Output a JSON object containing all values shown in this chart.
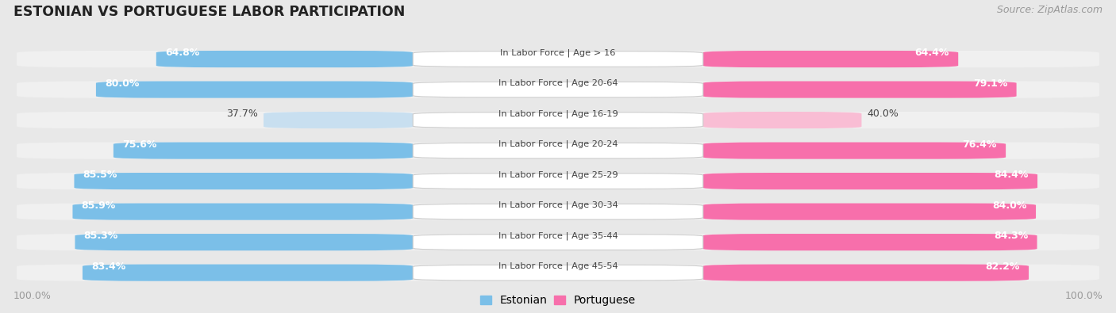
{
  "title": "ESTONIAN VS PORTUGUESE LABOR PARTICIPATION",
  "source": "Source: ZipAtlas.com",
  "categories": [
    "In Labor Force | Age > 16",
    "In Labor Force | Age 20-64",
    "In Labor Force | Age 16-19",
    "In Labor Force | Age 20-24",
    "In Labor Force | Age 25-29",
    "In Labor Force | Age 30-34",
    "In Labor Force | Age 35-44",
    "In Labor Force | Age 45-54"
  ],
  "estonian_values": [
    64.8,
    80.0,
    37.7,
    75.6,
    85.5,
    85.9,
    85.3,
    83.4
  ],
  "portuguese_values": [
    64.4,
    79.1,
    40.0,
    76.4,
    84.4,
    84.0,
    84.3,
    82.2
  ],
  "estonian_color": "#7BBFE8",
  "estonian_light_color": "#C8DFF0",
  "portuguese_color": "#F76FAB",
  "portuguese_light_color": "#F9BDD4",
  "bg_color": "#e8e8e8",
  "row_bg_color": "#f0f0f0",
  "title_color": "#222222",
  "source_color": "#999999",
  "label_color": "#444444",
  "x_label_color": "#999999",
  "max_value": 100.0,
  "x_tick_label": "100.0%",
  "low_value_idx": 2
}
